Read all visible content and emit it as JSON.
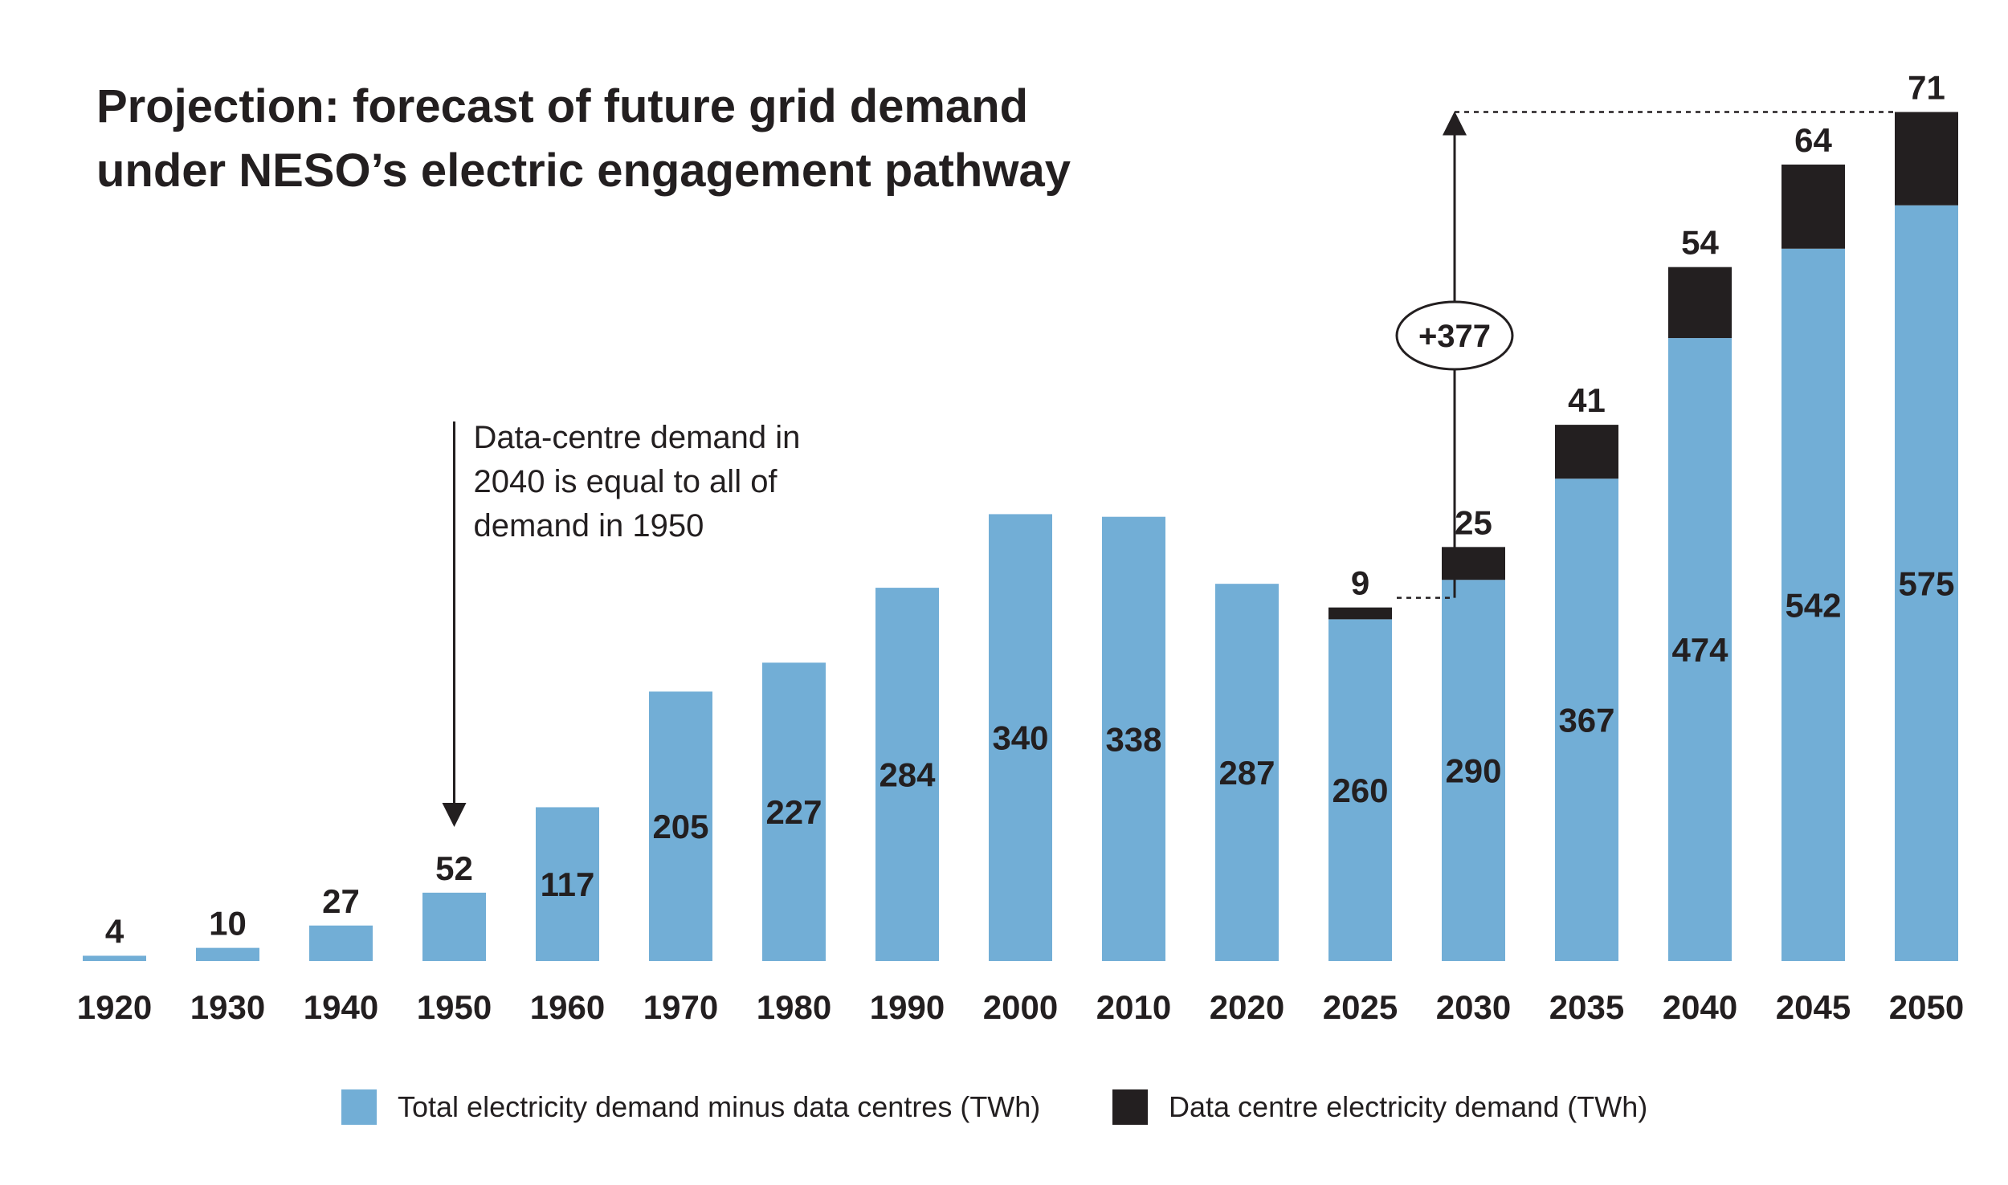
{
  "chart_data": {
    "type": "bar",
    "stacked": true,
    "title": [
      "Projection: forecast of future grid demand",
      "under NESO’s electric engagement pathway"
    ],
    "categories": [
      "1920",
      "1930",
      "1940",
      "1950",
      "1960",
      "1970",
      "1980",
      "1990",
      "2000",
      "2010",
      "2020",
      "2025",
      "2030",
      "2035",
      "2040",
      "2045",
      "2050"
    ],
    "series": [
      {
        "name": "Total electricity demand minus data centres (TWh)",
        "color": "#72aed6",
        "values": [
          4,
          10,
          27,
          52,
          117,
          205,
          227,
          284,
          340,
          338,
          287,
          260,
          290,
          367,
          474,
          542,
          575
        ]
      },
      {
        "name": "Data centre electricity demand  (TWh)",
        "color": "#231f20",
        "values": [
          0,
          0,
          0,
          0,
          0,
          0,
          0,
          0,
          0,
          0,
          0,
          9,
          25,
          41,
          54,
          64,
          71
        ]
      }
    ],
    "data_labels": {
      "top": [
        "4",
        "10",
        "27",
        "52",
        "",
        "",
        "",
        "",
        "",
        "",
        "",
        "9",
        "25",
        "41",
        "54",
        "64",
        "71"
      ],
      "inside": [
        "",
        "",
        "",
        "",
        "117",
        "205",
        "227",
        "284",
        "340",
        "338",
        "287",
        "260",
        "290",
        "367",
        "474",
        "542",
        "575"
      ]
    },
    "annotations": {
      "note_lines": [
        "Data-centre demand in",
        "2040 is equal to all of",
        "demand in 1950"
      ],
      "increase_badge": "+377"
    },
    "xlabel": "",
    "ylabel": "",
    "grid": false,
    "legend_position": "bottom"
  }
}
